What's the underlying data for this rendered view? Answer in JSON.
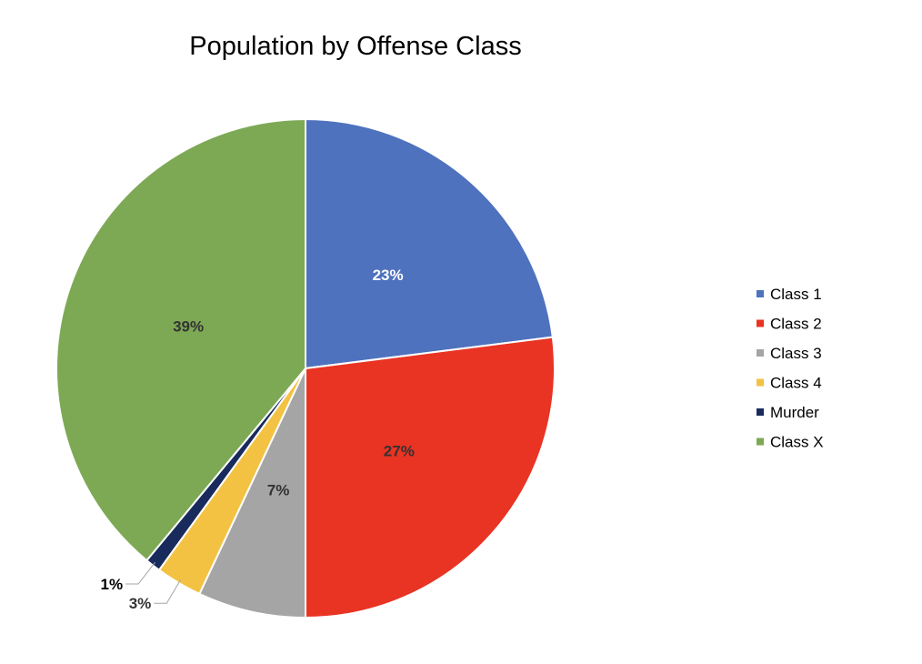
{
  "chart_data": {
    "type": "pie",
    "title": "Population by Offense Class",
    "start_angle_deg": 0,
    "direction": "clockwise",
    "legend_position": "right",
    "slices": [
      {
        "label": "Class 1",
        "value": 23,
        "display": "23%",
        "color": "#4F72BE",
        "label_color": "#ffffff"
      },
      {
        "label": "Class 2",
        "value": 27,
        "display": "27%",
        "color": "#E93323",
        "label_color": "#333333"
      },
      {
        "label": "Class 3",
        "value": 7,
        "display": "7%",
        "color": "#A5A5A5",
        "label_color": "#333333"
      },
      {
        "label": "Class 4",
        "value": 3,
        "display": "3%",
        "color": "#F3C242",
        "label_color": "#333333"
      },
      {
        "label": "Murder",
        "value": 1,
        "display": "1%",
        "color": "#182B5C",
        "label_color": "#000000"
      },
      {
        "label": "Class X",
        "value": 39,
        "display": "39%",
        "color": "#7DA955",
        "label_color": "#333333"
      }
    ]
  }
}
